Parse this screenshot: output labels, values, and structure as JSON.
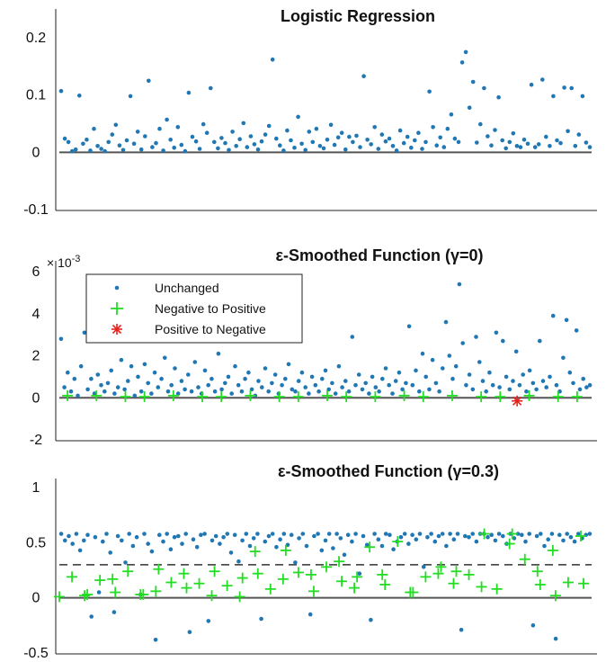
{
  "chart_data": [
    {
      "type": "scatter",
      "title": "Logistic Regression",
      "ylim": [
        -0.1,
        0.2
      ],
      "yticks": [
        "0.2",
        "0.1",
        "0",
        "-0.1"
      ],
      "xlabel": "",
      "ylabel": "",
      "colors": {
        "unchanged": "#1f77b4",
        "baseline": "#555555"
      },
      "series": [
        {
          "key": "unchanged",
          "values": [
            0.107,
            0.024,
            0.018,
            0.002,
            0.005,
            0.099,
            0.015,
            0.022,
            0.003,
            0.041,
            0.011,
            0.006,
            0.002,
            0.018,
            0.031,
            0.048,
            0.012,
            0.004,
            0.021,
            0.098,
            0.015,
            0.036,
            0.005,
            0.028,
            0.125,
            0.009,
            0.016,
            0.041,
            0.003,
            0.057,
            0.022,
            0.008,
            0.044,
            0.013,
            0.002,
            0.104,
            0.027,
            0.019,
            0.006,
            0.049,
            0.034,
            0.112,
            0.018,
            0.007,
            0.025,
            0.016,
            0.004,
            0.036,
            0.011,
            0.023,
            0.051,
            0.009,
            0.028,
            0.014,
            0.005,
            0.019,
            0.031,
            0.046,
            0.162,
            0.024,
            0.012,
            0.003,
            0.038,
            0.021,
            0.008,
            0.062,
            0.015,
            0.004,
            0.036,
            0.018,
            0.041,
            0.011,
            0.007,
            0.022,
            0.048,
            0.013,
            0.026,
            0.034,
            0.005,
            0.027,
            0.018,
            0.029,
            0.009,
            0.133,
            0.022,
            0.014,
            0.044,
            0.006,
            0.031,
            0.019,
            0.024,
            0.011,
            0.003,
            0.038,
            0.016,
            0.027,
            0.008,
            0.021,
            0.034,
            0.006,
            0.018,
            0.106,
            0.044,
            0.012,
            0.026,
            0.009,
            0.041,
            0.066,
            0.024,
            0.018,
            0.157,
            0.175,
            0.078,
            0.123,
            0.017,
            0.049,
            0.112,
            0.028,
            0.012,
            0.039,
            0.096,
            0.021,
            0.007,
            0.018,
            0.033,
            0.011,
            0.009,
            0.022,
            0.015,
            0.118,
            0.009,
            0.014,
            0.127,
            0.027,
            0.011,
            0.098,
            0.021,
            0.016,
            0.113,
            0.037,
            0.112,
            0.011,
            0.031,
            0.098,
            0.017,
            0.009
          ]
        }
      ]
    },
    {
      "type": "scatter",
      "title": "ε-Smoothed Function (γ=0)",
      "ylim": [
        -2,
        6
      ],
      "yticks": [
        "6",
        "4",
        "2",
        "0",
        "-2"
      ],
      "axis_multiplier": {
        "base": "× 10",
        "exp": "-3"
      },
      "xlabel": "",
      "ylabel": "",
      "colors": {
        "unchanged": "#1f77b4",
        "neg_to_pos": "#22dd22",
        "pos_to_neg": "#e8211c",
        "baseline": "#555555"
      },
      "legend": {
        "position": "top-left",
        "entries": [
          "Unchanged",
          "Negative to Positive",
          "Positive to Negative"
        ]
      },
      "series": [
        {
          "key": "unchanged",
          "name": "Unchanged",
          "values": [
            2.8,
            0.5,
            1.2,
            0.3,
            0.9,
            0.1,
            1.5,
            3.1,
            0.4,
            0.9,
            0.2,
            1.1,
            0.6,
            0.3,
            0.7,
            1.3,
            0.2,
            0.5,
            1.8,
            0.4,
            0.8,
            1.5,
            0.1,
            1.0,
            0.3,
            1.6,
            0.7,
            0.2,
            1.2,
            0.5,
            0.9,
            1.9,
            0.3,
            0.6,
            1.4,
            0.2,
            0.8,
            0.4,
            1.1,
            0.3,
            1.7,
            0.5,
            0.2,
            1.3,
            0.6,
            0.9,
            0.3,
            2.1,
            0.4,
            0.7,
            1.0,
            0.2,
            1.5,
            0.6,
            0.3,
            0.9,
            1.2,
            0.4,
            0.1,
            0.8,
            0.5,
            1.4,
            0.3,
            0.7,
            1.1,
            0.2,
            0.6,
            0.9,
            1.6,
            0.4,
            0.3,
            0.8,
            1.2,
            0.5,
            0.2,
            1.0,
            0.6,
            0.3,
            0.9,
            1.3,
            0.4,
            0.7,
            0.2,
            1.5,
            0.5,
            0.8,
            0.3,
            2.9,
            0.6,
            1.1,
            0.4,
            0.7,
            0.2,
            1.0,
            0.5,
            0.3,
            0.9,
            1.4,
            0.6,
            0.2,
            0.8,
            1.2,
            0.4,
            0.7,
            3.4,
            0.6,
            1.3,
            0.3,
            2.1,
            1.0,
            0.4,
            1.8,
            0.7,
            0.3,
            1.4,
            3.6,
            2.0,
            0.9,
            1.5,
            5.4,
            2.6,
            0.6,
            1.1,
            0.4,
            2.9,
            1.7,
            0.8,
            0.3,
            1.2,
            0.6,
            3.1,
            0.5,
            2.7,
            1.0,
            0.4,
            0.8,
            2.2,
            0.6,
            1.1,
            0.3,
            1.3,
            0.7,
            0.4,
            2.7,
            0.8,
            0.5,
            1.0,
            3.9,
            0.6,
            0.3,
            1.9,
            3.7,
            1.2,
            0.7,
            3.2,
            0.4,
            0.9,
            0.5,
            0.6
          ]
        },
        {
          "key": "neg_to_pos",
          "name": "Negative to Positive",
          "values": [
            0.1,
            0.1,
            0.05,
            0.05,
            0.1,
            0.05,
            0.05,
            0.1,
            0.05,
            0.05,
            0.1,
            0.05,
            0.05,
            0.1,
            0.05,
            0.1,
            0.05,
            0.05,
            0.1,
            0.05,
            0.05
          ]
        },
        {
          "key": "pos_to_neg",
          "name": "Positive to Negative",
          "values": [
            -0.15
          ]
        }
      ]
    },
    {
      "type": "scatter",
      "title": "ε-Smoothed Function (γ=0.3)",
      "ylim": [
        -0.5,
        1
      ],
      "yticks": [
        "1",
        "0.5",
        "0",
        "-0.5"
      ],
      "threshold": 0.3,
      "xlabel": "",
      "ylabel": "",
      "colors": {
        "unchanged": "#1f77b4",
        "neg_to_pos": "#22dd22",
        "baseline": "#555555",
        "threshold": "#333333"
      },
      "series": [
        {
          "key": "unchanged",
          "values": [
            0.58,
            0.52,
            0.56,
            0.49,
            0.58,
            0.43,
            0.52,
            0.57,
            -0.17,
            0.55,
            0.05,
            0.51,
            0.58,
            0.41,
            -0.13,
            0.56,
            0.52,
            0.32,
            0.58,
            0.47,
            0.55,
            0.03,
            0.58,
            0.49,
            0.42,
            -0.38,
            0.57,
            0.51,
            0.58,
            0.44,
            0.55,
            0.56,
            0.49,
            0.58,
            -0.31,
            0.53,
            0.46,
            0.57,
            0.58,
            -0.21,
            0.52,
            0.56,
            0.49,
            0.55,
            0.58,
            0.41,
            0.57,
            0.33,
            0.52,
            0.58,
            0.47,
            0.54,
            0.58,
            -0.19,
            0.51,
            0.56,
            0.58,
            0.46,
            0.53,
            0.58,
            0.48,
            0.57,
            0.32,
            0.54,
            0.58,
            0.47,
            -0.15,
            0.56,
            0.58,
            0.43,
            0.52,
            0.58,
            0.45,
            0.58,
            0.54,
            0.39,
            0.57,
            0.51,
            0.58,
            0.22,
            0.56,
            0.48,
            -0.2,
            0.58,
            0.53,
            0.47,
            0.58,
            0.57,
            0.44,
            0.51,
            0.55,
            0.58,
            0.49,
            0.57,
            0.53,
            0.58,
            0.28,
            0.55,
            0.58,
            0.51,
            0.56,
            0.58,
            0.47,
            0.58,
            0.53,
            0.58,
            -0.29,
            0.56,
            0.55,
            0.58,
            0.51,
            0.58,
            0.58,
            0.55,
            0.57,
            0.52,
            0.58,
            0.56,
            0.49,
            0.58,
            0.54,
            0.58,
            0.57,
            0.51,
            0.58,
            -0.25,
            0.56,
            0.58,
            0.47,
            0.53,
            0.58,
            -0.37,
            0.57,
            0.52,
            0.58,
            0.55,
            0.51,
            0.58,
            0.54,
            0.57,
            0.58
          ]
        },
        {
          "key": "neg_to_pos",
          "values": [
            0.01,
            0.19,
            0.02,
            0.03,
            0.16,
            0.17,
            0.05,
            0.24,
            0.03,
            0.03,
            0.06,
            0.26,
            0.14,
            0.22,
            0.09,
            0.13,
            0.02,
            0.24,
            0.11,
            0.01,
            0.18,
            0.42,
            0.22,
            0.08,
            0.17,
            0.43,
            0.23,
            0.21,
            0.06,
            0.28,
            0.33,
            0.15,
            0.09,
            0.19,
            0.46,
            0.21,
            0.12,
            0.51,
            0.05,
            0.05,
            0.19,
            0.22,
            0.28,
            0.13,
            0.24,
            0.21,
            0.1,
            0.58,
            0.08,
            0.49,
            0.58,
            0.35,
            0.24,
            0.12,
            0.43,
            0.02,
            0.14,
            0.56,
            0.13
          ]
        }
      ]
    }
  ]
}
